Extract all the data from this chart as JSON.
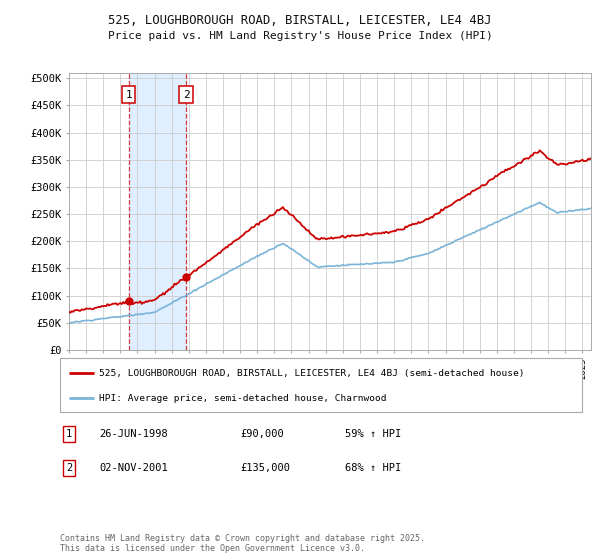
{
  "title_line1": "525, LOUGHBOROUGH ROAD, BIRSTALL, LEICESTER, LE4 4BJ",
  "title_line2": "Price paid vs. HM Land Registry's House Price Index (HPI)",
  "ylim": [
    0,
    510000
  ],
  "yticks": [
    0,
    50000,
    100000,
    150000,
    200000,
    250000,
    300000,
    350000,
    400000,
    450000,
    500000
  ],
  "ytick_labels": [
    "£0",
    "£50K",
    "£100K",
    "£150K",
    "£200K",
    "£250K",
    "£300K",
    "£350K",
    "£400K",
    "£450K",
    "£500K"
  ],
  "hpi_color": "#7ab4d8",
  "price_color": "#cc0000",
  "sale1_price": 90000,
  "sale2_price": 135000,
  "sale1_year": 1998.49,
  "sale2_year": 2001.84,
  "sale1_date": "26-JUN-1998",
  "sale2_date": "02-NOV-2001",
  "sale1_hpi_pct": "59% ↑ HPI",
  "sale2_hpi_pct": "68% ↑ HPI",
  "legend_line1": "525, LOUGHBOROUGH ROAD, BIRSTALL, LEICESTER, LE4 4BJ (semi-detached house)",
  "legend_line2": "HPI: Average price, semi-detached house, Charnwood",
  "footnote": "Contains HM Land Registry data © Crown copyright and database right 2025.\nThis data is licensed under the Open Government Licence v3.0.",
  "background_color": "#ffffff",
  "grid_color": "#cccccc",
  "shade_color": "#ddeeff"
}
